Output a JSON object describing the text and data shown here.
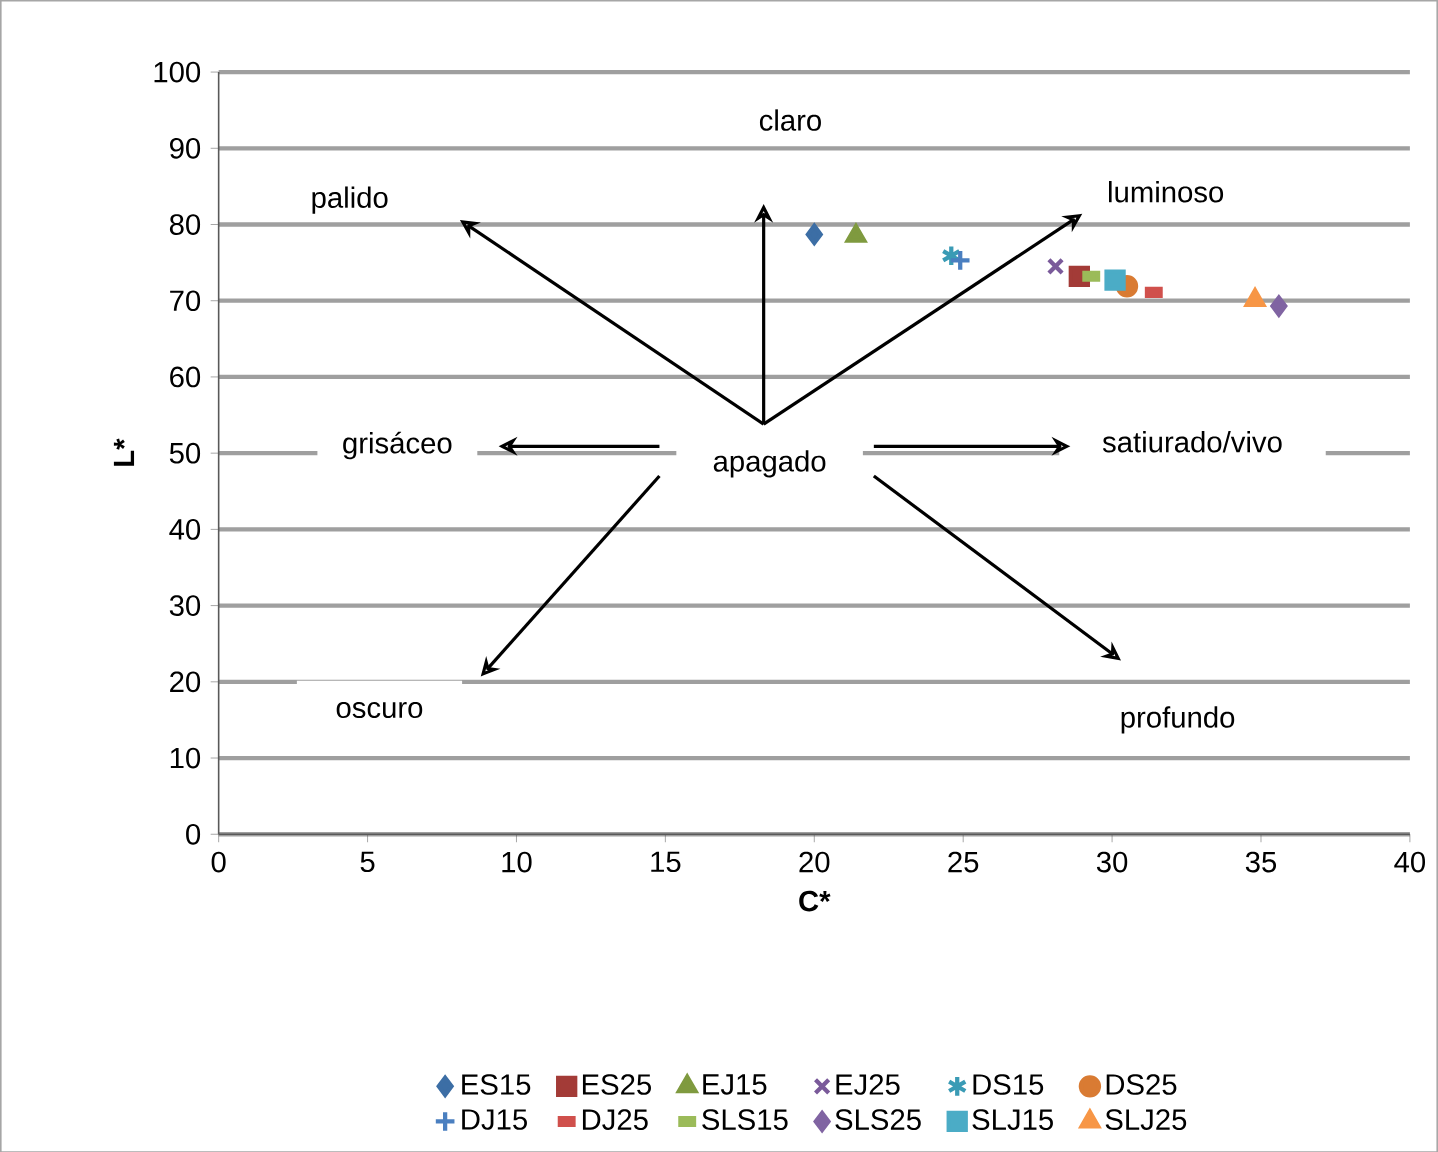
{
  "chart_data": {
    "type": "scatter",
    "xlabel": "C*",
    "ylabel": "L*",
    "xlim": [
      0,
      40
    ],
    "xticks": [
      0,
      5,
      10,
      15,
      20,
      25,
      30,
      35,
      40
    ],
    "ylim": [
      0,
      100
    ],
    "yticks": [
      0,
      10,
      20,
      30,
      40,
      50,
      60,
      70,
      80,
      90,
      100
    ],
    "grid": "y",
    "legend": "bottom",
    "series": [
      {
        "name": "ES15",
        "color": "#3c6ea5",
        "marker": "diamond",
        "x": [
          20.0
        ],
        "values": [
          78.7
        ]
      },
      {
        "name": "ES25",
        "color": "#a33b37",
        "marker": "square",
        "x": [
          28.9
        ],
        "values": [
          73.2
        ]
      },
      {
        "name": "EJ15",
        "color": "#7f9a3f",
        "marker": "triangle",
        "x": [
          21.4
        ],
        "values": [
          78.5
        ]
      },
      {
        "name": "EJ25",
        "color": "#7a5a9a",
        "marker": "cross",
        "x": [
          28.1
        ],
        "values": [
          74.5
        ]
      },
      {
        "name": "DS15",
        "color": "#3a9bb5",
        "marker": "cross",
        "x": [
          24.6
        ],
        "values": [
          75.9
        ]
      },
      {
        "name": "DS25",
        "color": "#d97b33",
        "marker": "circle",
        "x": [
          30.5
        ],
        "values": [
          71.9
        ]
      },
      {
        "name": "DJ15",
        "color": "#4a7fc0",
        "marker": "plus",
        "x": [
          24.9
        ],
        "values": [
          75.3
        ]
      },
      {
        "name": "DJ25",
        "color": "#d0504c",
        "marker": "square",
        "x": [
          31.4
        ],
        "values": [
          71.1
        ]
      },
      {
        "name": "SLS15",
        "color": "#9bbb59",
        "marker": "square",
        "x": [
          29.3
        ],
        "values": [
          73.2
        ]
      },
      {
        "name": "SLS25",
        "color": "#8064a2",
        "marker": "diamond",
        "x": [
          35.6
        ],
        "values": [
          69.3
        ]
      },
      {
        "name": "SLJ15",
        "color": "#4bacc6",
        "marker": "square",
        "x": [
          30.1
        ],
        "values": [
          72.7
        ]
      },
      {
        "name": "SLJ25",
        "color": "#f79646",
        "marker": "triangle",
        "x": [
          34.8
        ],
        "values": [
          70.1
        ]
      }
    ],
    "annotations": [
      "claro",
      "palido",
      "luminoso",
      "grisáceo",
      "apagado",
      "satiurado/vivo",
      "oscuro",
      "profundo"
    ]
  }
}
